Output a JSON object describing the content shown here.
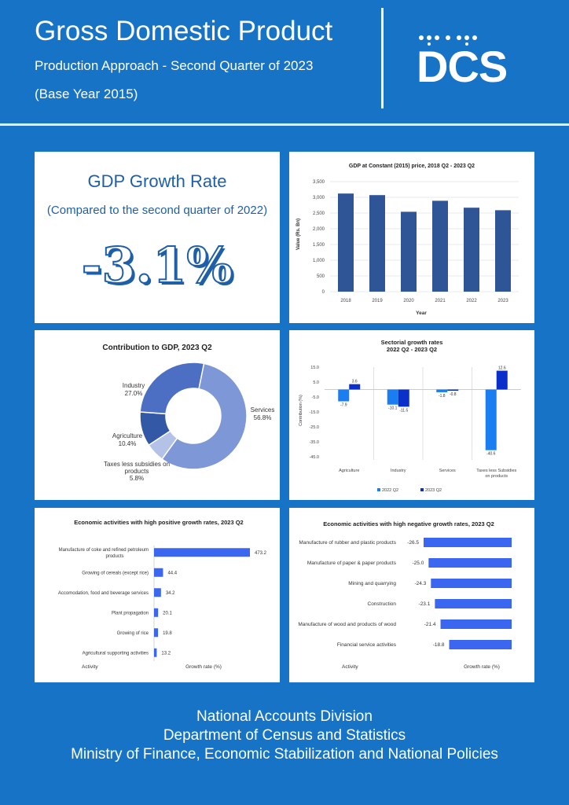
{
  "header": {
    "title": "Gross Domestic Product",
    "subtitle": "Production Approach - Second Quarter of 2023",
    "base_year": "(Base Year 2015)",
    "logo_text": "DCS"
  },
  "growth_panel": {
    "title": "GDP Growth Rate",
    "subtitle": "(Compared to the second quarter of 2022)",
    "value": "-3.1%"
  },
  "footer": {
    "line1": "National Accounts Division",
    "line2": "Department of Census and Statistics",
    "line3": "Ministry of Finance, Economic Stabilization and National Policies"
  },
  "chart_data": [
    {
      "type": "bar",
      "title": "GDP at Constant (2015) price, 2018 Q2 - 2023 Q2",
      "xlabel": "Year",
      "ylabel": "Value (Rs. Bn)",
      "categories": [
        "2018",
        "2019",
        "2020",
        "2021",
        "2022",
        "2023"
      ],
      "values": [
        3120,
        3070,
        2540,
        2890,
        2670,
        2590
      ],
      "ylim": [
        0,
        3500
      ],
      "ticks": [
        "0",
        "500",
        "1,000",
        "1,500",
        "2,000",
        "2,500",
        "3,000",
        "3,500"
      ],
      "color": "#2f5597"
    },
    {
      "type": "pie",
      "title": "Contribution to GDP, 2023 Q2",
      "slices": [
        {
          "label": "Services",
          "value": 56.8,
          "value_label": "56.8%",
          "color": "#7e97d6"
        },
        {
          "label": "Taxes less subsidies on products",
          "value": 5.8,
          "value_label": "5.8%",
          "color": "#b4c2e8"
        },
        {
          "label": "Agriculture",
          "value": 10.4,
          "value_label": "10.4%",
          "color": "#3359a6"
        },
        {
          "label": "Industry",
          "value": 27.0,
          "value_label": "27.0%",
          "color": "#4c6fc4"
        }
      ]
    },
    {
      "type": "bar",
      "title": "Sectorial growth rates",
      "subtitle": "2022 Q2 - 2023 Q2",
      "ylabel": "Contribution (%)",
      "categories": [
        "Agriculture",
        "Industry",
        "Services",
        "Taxes less Subsidies on products"
      ],
      "ylim": [
        -45,
        15
      ],
      "ticks": [
        "15.0",
        "5.0",
        "-5.0",
        "-15.0",
        "-25.0",
        "-35.0",
        "-45.0"
      ],
      "series": [
        {
          "name": "2022 Q2",
          "values": [
            -7.9,
            -10.1,
            -1.8,
            -40.6
          ],
          "labels": [
            "-7.9",
            "-10.1",
            "-1.8",
            "-40.6"
          ],
          "color": "#1a7df0"
        },
        {
          "name": "2023 Q2",
          "values": [
            3.6,
            -11.5,
            -0.8,
            12.6
          ],
          "labels": [
            "3.6",
            "-11.5",
            "-0.8",
            "12.6"
          ],
          "color": "#0b2fc9"
        }
      ]
    },
    {
      "type": "bar",
      "orientation": "horizontal",
      "title": "Economic activities with high positive growth rates, 2023 Q2",
      "xlabel": "Growth rate (%)",
      "category_header": "Activity",
      "categories": [
        "Manufacture of coke and refined petroleum products",
        "Growing of cereals (except rice)",
        "Accomodation, food and beverage services",
        "Plant propagation",
        "Growing of rice",
        "Agricultural supporting activities"
      ],
      "values": [
        473.2,
        44.4,
        34.2,
        20.1,
        19.8,
        13.2
      ],
      "labels": [
        "473.2",
        "44.4",
        "34.2",
        "20.1",
        "19.8",
        "13.2"
      ],
      "color": "#3a66f0"
    },
    {
      "type": "bar",
      "orientation": "horizontal",
      "title": "Economic activities with high negative growth rates, 2023 Q2",
      "xlabel": "Growth rate (%)",
      "category_header": "Activity",
      "categories": [
        "Manufacture of rubber and plastic products",
        "Manufacture of paper & paper products",
        "Mining and quarrying",
        "Construction",
        "Manufacture of wood and products of wood",
        "Financial service activities"
      ],
      "values": [
        -26.5,
        -25.0,
        -24.3,
        -23.1,
        -21.4,
        -18.8
      ],
      "labels": [
        "-26.5",
        "-25.0",
        "-24.3",
        "-23.1",
        "-21.4",
        "-18.8"
      ],
      "color": "#3a66f0"
    }
  ]
}
